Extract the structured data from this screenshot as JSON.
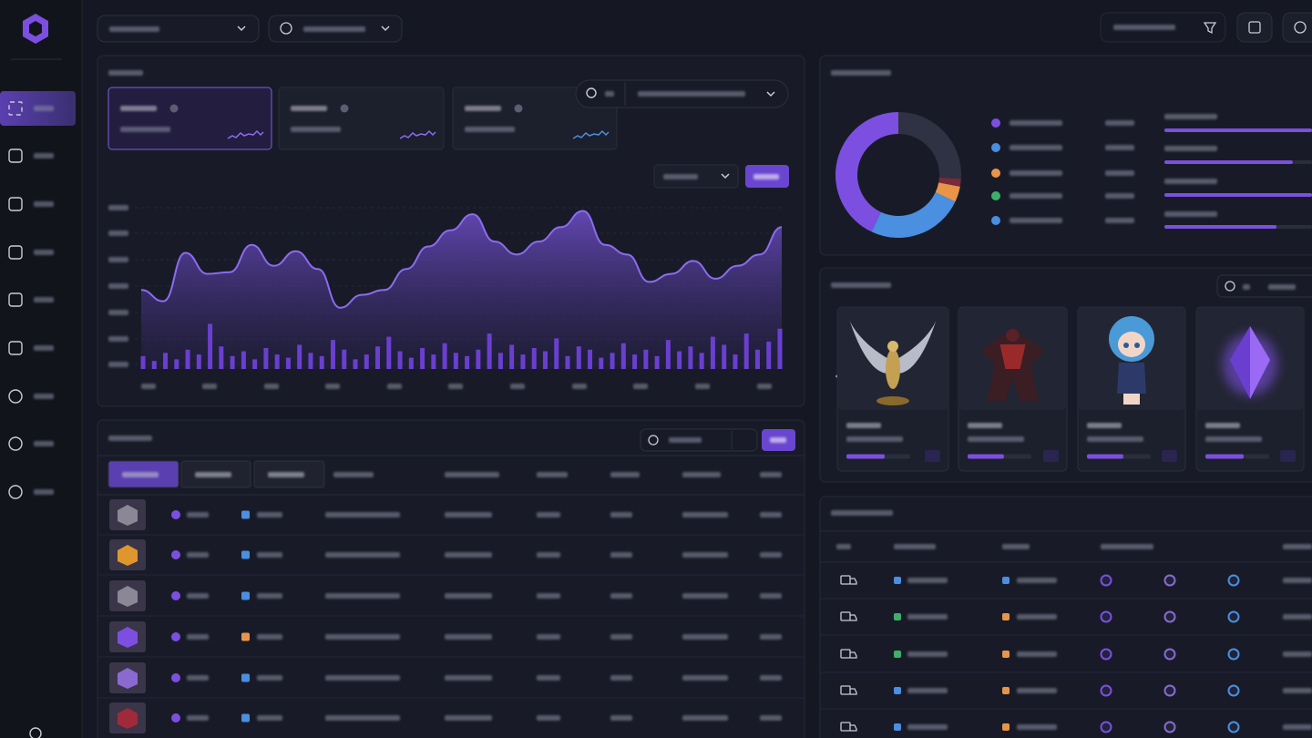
{
  "chart_data": [
    {
      "type": "area",
      "color": "#8b6cf0",
      "ylim": [
        0,
        100
      ],
      "values": [
        49,
        42,
        72,
        59,
        60,
        77,
        64,
        73,
        62,
        38,
        46,
        49,
        62,
        76,
        86,
        96,
        79,
        71,
        79,
        88,
        98,
        77,
        71,
        54,
        59,
        67,
        56,
        64,
        71,
        88
      ]
    },
    {
      "type": "bar",
      "color": "#6a3fd0",
      "ylim": [
        0,
        100
      ],
      "values": [
        8,
        5,
        10,
        6,
        12,
        9,
        28,
        14,
        8,
        11,
        6,
        13,
        9,
        7,
        15,
        10,
        8,
        18,
        12,
        6,
        9,
        14,
        20,
        11,
        7,
        13,
        9,
        16,
        10,
        8,
        12,
        22,
        10,
        15,
        9,
        13,
        11,
        19,
        8,
        14,
        12,
        7,
        10,
        16,
        9,
        12,
        8,
        18,
        11,
        14,
        10,
        20,
        15,
        9,
        22,
        12,
        17,
        25
      ]
    },
    {
      "type": "pie",
      "values": [
        26,
        2,
        4,
        25,
        43
      ],
      "colors": [
        "#2f3242",
        "#7a2a3a",
        "#e8954a",
        "#4a8fe0",
        "#7c4fe0"
      ]
    },
    {
      "type": "progress",
      "color": "#7c4fe0",
      "xlim": [
        0,
        100
      ],
      "values": [
        100,
        87,
        100,
        76
      ]
    },
    {
      "type": "progress",
      "color": "#7c4fe0",
      "xlim": [
        0,
        100
      ],
      "values": [
        60,
        57,
        57,
        60
      ]
    }
  ]
}
